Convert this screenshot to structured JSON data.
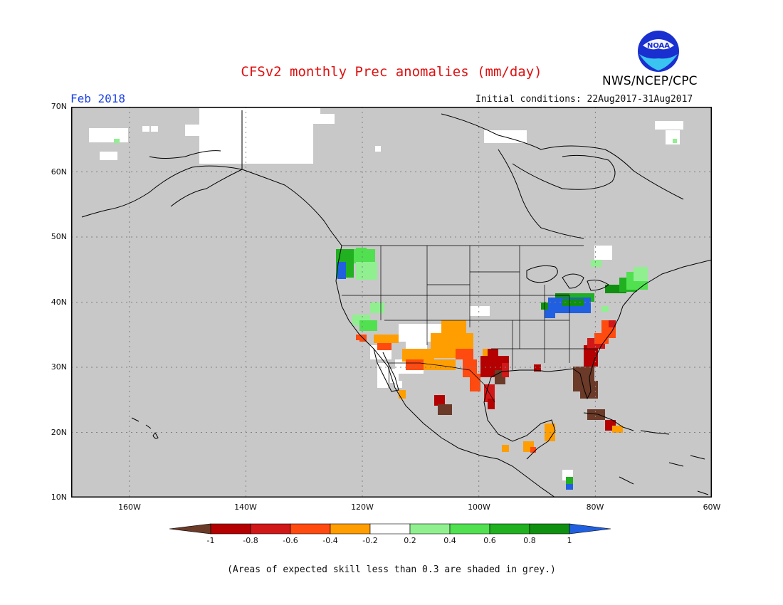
{
  "title": "CFSv2 monthly Prec anomalies (mm/day)",
  "agency": "NWS/NCEP/CPC",
  "logo_text": "NOAA",
  "valid_month": "Feb 2018",
  "initial_conditions": "Initial conditions: 22Aug2017-31Aug2017",
  "footnote": "(Areas of expected skill less than 0.3 are shaded in grey.)",
  "map": {
    "lon_range": [
      -170,
      -60
    ],
    "lat_range": [
      10,
      70
    ],
    "lat_labels": [
      "70N",
      "60N",
      "50N",
      "40N",
      "30N",
      "20N",
      "10N"
    ],
    "lon_labels": [
      "160W",
      "140W",
      "120W",
      "100W",
      "80W",
      "60W"
    ],
    "grid": true,
    "background_color": "#c8c8c8"
  },
  "colorbar": {
    "labels": [
      "-1",
      "-0.8",
      "-0.6",
      "-0.4",
      "-0.2",
      "0.2",
      "0.4",
      "0.6",
      "0.8",
      "1"
    ],
    "colors": [
      "#6b3a28",
      "#b40000",
      "#d01818",
      "#ff4a10",
      "#ff9e00",
      "#ffffff",
      "#90f090",
      "#50e050",
      "#20b020",
      "#109010",
      "#2060e0"
    ]
  }
}
